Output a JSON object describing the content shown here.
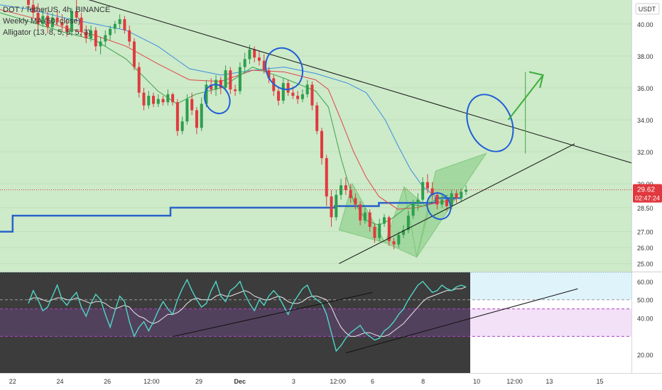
{
  "header": {
    "symbol_line": "DOT / TetherUS, 4h, BINANCE",
    "indicator_1": "Weekly MA (50, close)",
    "indicator_2": "Alligator (13, 8, 5, 8, 5, 3)"
  },
  "price_axis": {
    "currency": "USDT",
    "ticks": [
      "40.00",
      "38.00",
      "36.00",
      "34.00",
      "32.00",
      "30.00",
      "28.50",
      "27.00",
      "26.00",
      "25.00"
    ],
    "tick_values": [
      40,
      38,
      36,
      34,
      32,
      30,
      28.5,
      27,
      26,
      25
    ],
    "last_price": "29.62",
    "countdown": "02:47:24"
  },
  "osc_axis": {
    "ticks": [
      "60.00",
      "50.00",
      "40.00",
      "20.00"
    ],
    "tick_values": [
      60,
      50,
      40,
      20
    ]
  },
  "time_axis": {
    "labels": [
      "22",
      "24",
      "26",
      "12:00",
      "29",
      "Dec",
      "3",
      "12:00",
      "6",
      "8",
      "10",
      "12:00",
      "13",
      "15"
    ],
    "positions": [
      0.02,
      0.095,
      0.17,
      0.24,
      0.315,
      0.38,
      0.465,
      0.535,
      0.59,
      0.67,
      0.755,
      0.815,
      0.87,
      0.95
    ]
  },
  "colors": {
    "chart_bg": "#cdeac9",
    "osc_bg": "#3c3c3c",
    "bull": "#2e9e4e",
    "bear": "#e03a3e",
    "weekly_ma": "#2962c9",
    "jaw": "#3b8fe0",
    "teeth": "#e2474b",
    "lips": "#3fa34d",
    "rsi": "#4fd6c8",
    "rsi_ma": "#e8e8e8",
    "trend": "#111111",
    "ellipse": "#1f5ed6",
    "pattern": "#82c97d",
    "arrow": "#3cae3c",
    "price_tag": "#e0383e"
  },
  "chart_data": [
    {
      "type": "candlestick",
      "title": "DOT / TetherUS, 4h, BINANCE",
      "ylim": [
        24.5,
        41.5
      ],
      "candles": [
        [
          41.5,
          42.2,
          40.9,
          41.2
        ],
        [
          41.2,
          41.6,
          40.4,
          40.7
        ],
        [
          40.7,
          41.3,
          39.6,
          40.0
        ],
        [
          40.0,
          40.9,
          39.8,
          40.5
        ],
        [
          40.5,
          40.8,
          39.4,
          39.8
        ],
        [
          39.8,
          40.7,
          39.6,
          40.4
        ],
        [
          40.4,
          40.9,
          39.9,
          40.1
        ],
        [
          40.1,
          40.6,
          39.5,
          39.9
        ],
        [
          39.9,
          40.3,
          39.2,
          39.5
        ],
        [
          39.5,
          41.0,
          39.3,
          40.8
        ],
        [
          40.8,
          41.5,
          40.2,
          40.4
        ],
        [
          40.4,
          40.7,
          39.2,
          39.5
        ],
        [
          39.5,
          39.9,
          38.8,
          39.1
        ],
        [
          39.1,
          39.9,
          38.9,
          39.6
        ],
        [
          39.6,
          39.8,
          38.3,
          38.6
        ],
        [
          38.6,
          39.2,
          38.1,
          38.9
        ],
        [
          38.9,
          39.6,
          38.6,
          39.3
        ],
        [
          39.3,
          39.9,
          39.0,
          39.7
        ],
        [
          39.7,
          40.2,
          39.4,
          40.0
        ],
        [
          40.0,
          40.6,
          39.7,
          40.3
        ],
        [
          40.3,
          40.5,
          39.4,
          39.6
        ],
        [
          39.6,
          39.9,
          38.6,
          38.9
        ],
        [
          38.9,
          39.1,
          37.1,
          37.3
        ],
        [
          37.3,
          37.6,
          35.4,
          35.7
        ],
        [
          35.7,
          36.0,
          34.6,
          34.9
        ],
        [
          34.9,
          35.8,
          34.7,
          35.5
        ],
        [
          35.5,
          35.7,
          34.8,
          35.0
        ],
        [
          35.0,
          35.6,
          34.8,
          35.3
        ],
        [
          35.3,
          35.5,
          34.9,
          35.1
        ],
        [
          35.1,
          35.9,
          34.9,
          35.6
        ],
        [
          35.6,
          35.7,
          34.9,
          35.1
        ],
        [
          35.1,
          35.3,
          33.0,
          33.3
        ],
        [
          33.3,
          34.2,
          33.1,
          33.9
        ],
        [
          33.9,
          35.6,
          33.7,
          35.3
        ],
        [
          35.3,
          35.7,
          34.3,
          34.6
        ],
        [
          34.6,
          34.8,
          33.1,
          33.5
        ],
        [
          33.5,
          35.4,
          33.3,
          35.0
        ],
        [
          35.0,
          36.5,
          34.8,
          36.2
        ],
        [
          36.2,
          36.6,
          35.6,
          35.9
        ],
        [
          35.9,
          36.8,
          35.5,
          36.5
        ],
        [
          36.5,
          36.7,
          35.6,
          36.0
        ],
        [
          36.0,
          37.4,
          35.8,
          37.1
        ],
        [
          37.1,
          37.3,
          35.6,
          35.9
        ],
        [
          35.9,
          36.2,
          35.5,
          35.8
        ],
        [
          35.8,
          37.6,
          35.6,
          37.3
        ],
        [
          37.3,
          38.2,
          36.9,
          37.8
        ],
        [
          37.8,
          38.7,
          37.5,
          38.4
        ],
        [
          38.4,
          38.6,
          37.6,
          37.9
        ],
        [
          37.9,
          38.3,
          37.4,
          37.7
        ],
        [
          37.7,
          38.1,
          36.9,
          37.1
        ],
        [
          37.1,
          37.3,
          36.3,
          36.6
        ],
        [
          36.6,
          36.8,
          35.5,
          35.8
        ],
        [
          35.8,
          36.0,
          34.9,
          35.2
        ],
        [
          35.2,
          36.6,
          35.0,
          36.3
        ],
        [
          36.3,
          36.5,
          35.5,
          35.7
        ],
        [
          35.7,
          36.1,
          35.3,
          35.5
        ],
        [
          35.5,
          35.8,
          35.0,
          35.3
        ],
        [
          35.3,
          35.9,
          35.1,
          35.6
        ],
        [
          35.6,
          36.5,
          35.4,
          36.2
        ],
        [
          36.2,
          36.4,
          34.6,
          34.9
        ],
        [
          34.9,
          35.1,
          33.1,
          33.3
        ],
        [
          33.3,
          33.5,
          31.2,
          31.6
        ],
        [
          31.6,
          31.8,
          28.6,
          29.2
        ],
        [
          29.2,
          29.6,
          27.3,
          27.9
        ],
        [
          27.9,
          29.6,
          27.7,
          29.3
        ],
        [
          29.3,
          30.3,
          29.0,
          29.9
        ],
        [
          29.9,
          30.4,
          29.3,
          29.6
        ],
        [
          29.6,
          30.0,
          28.8,
          29.1
        ],
        [
          29.1,
          29.4,
          28.4,
          28.7
        ],
        [
          28.7,
          28.9,
          27.4,
          27.7
        ],
        [
          27.7,
          28.5,
          27.5,
          28.2
        ],
        [
          28.2,
          28.4,
          27.0,
          27.3
        ],
        [
          27.3,
          27.5,
          26.3,
          26.6
        ],
        [
          26.6,
          27.8,
          26.4,
          27.5
        ],
        [
          27.5,
          28.1,
          27.3,
          27.9
        ],
        [
          27.9,
          28.0,
          26.1,
          26.4
        ],
        [
          26.4,
          26.6,
          25.9,
          26.2
        ],
        [
          26.2,
          27.0,
          26.0,
          26.8
        ],
        [
          26.8,
          27.4,
          26.6,
          27.1
        ],
        [
          27.1,
          28.3,
          26.9,
          28.0
        ],
        [
          28.0,
          29.0,
          27.8,
          28.8
        ],
        [
          28.8,
          29.4,
          28.3,
          29.0
        ],
        [
          29.0,
          30.4,
          28.8,
          30.1
        ],
        [
          30.1,
          30.6,
          29.4,
          29.7
        ],
        [
          29.7,
          30.1,
          29.0,
          29.3
        ],
        [
          29.3,
          29.5,
          28.4,
          28.7
        ],
        [
          28.7,
          29.3,
          28.5,
          29.0
        ],
        [
          29.0,
          29.2,
          28.3,
          28.6
        ],
        [
          28.6,
          29.6,
          28.4,
          29.4
        ],
        [
          29.4,
          29.6,
          28.8,
          29.1
        ],
        [
          29.1,
          29.7,
          28.9,
          29.5
        ],
        [
          29.5,
          29.9,
          29.3,
          29.62
        ]
      ],
      "weekly_ma": [
        [
          0,
          27.0
        ],
        [
          0.02,
          27.0
        ],
        [
          0.02,
          28.0
        ],
        [
          0.27,
          28.0
        ],
        [
          0.27,
          28.5
        ],
        [
          0.53,
          28.5
        ],
        [
          0.53,
          28.6
        ],
        [
          0.6,
          28.6
        ],
        [
          0.6,
          28.8
        ],
        [
          0.69,
          28.8
        ],
        [
          0.69,
          29.1
        ],
        [
          0.73,
          29.1
        ]
      ],
      "alligator_jaw": [
        [
          0,
          41.2
        ],
        [
          0.05,
          40.9
        ],
        [
          0.1,
          40.4
        ],
        [
          0.15,
          40.0
        ],
        [
          0.2,
          39.6
        ],
        [
          0.25,
          38.6
        ],
        [
          0.3,
          37.2
        ],
        [
          0.35,
          36.8
        ],
        [
          0.4,
          37.1
        ],
        [
          0.45,
          37.3
        ],
        [
          0.5,
          36.9
        ],
        [
          0.55,
          36.3
        ],
        [
          0.58,
          35.7
        ],
        [
          0.61,
          34.0
        ],
        [
          0.63,
          32.4
        ],
        [
          0.65,
          30.9
        ],
        [
          0.67,
          29.8
        ],
        [
          0.69,
          29.2
        ],
        [
          0.71,
          29.0
        ],
        [
          0.73,
          29.1
        ]
      ],
      "alligator_teeth": [
        [
          0,
          40.9
        ],
        [
          0.05,
          40.4
        ],
        [
          0.1,
          39.8
        ],
        [
          0.15,
          39.3
        ],
        [
          0.2,
          38.6
        ],
        [
          0.25,
          37.5
        ],
        [
          0.3,
          36.5
        ],
        [
          0.35,
          36.4
        ],
        [
          0.4,
          37.1
        ],
        [
          0.45,
          37.0
        ],
        [
          0.5,
          36.5
        ],
        [
          0.52,
          35.9
        ],
        [
          0.54,
          34.0
        ],
        [
          0.56,
          32.0
        ],
        [
          0.58,
          30.4
        ],
        [
          0.6,
          29.2
        ],
        [
          0.63,
          28.4
        ],
        [
          0.66,
          28.5
        ],
        [
          0.69,
          28.8
        ],
        [
          0.72,
          29.0
        ]
      ],
      "alligator_lips": [
        [
          0,
          40.7
        ],
        [
          0.05,
          40.1
        ],
        [
          0.1,
          39.5
        ],
        [
          0.15,
          39.0
        ],
        [
          0.2,
          37.8
        ],
        [
          0.25,
          35.8
        ],
        [
          0.28,
          35.0
        ],
        [
          0.31,
          35.6
        ],
        [
          0.35,
          36.0
        ],
        [
          0.4,
          37.3
        ],
        [
          0.45,
          36.6
        ],
        [
          0.5,
          35.8
        ],
        [
          0.52,
          34.8
        ],
        [
          0.54,
          31.6
        ],
        [
          0.56,
          28.9
        ],
        [
          0.58,
          27.7
        ],
        [
          0.6,
          27.4
        ],
        [
          0.62,
          27.8
        ],
        [
          0.65,
          28.7
        ],
        [
          0.67,
          28.6
        ],
        [
          0.69,
          29.0
        ],
        [
          0.71,
          29.3
        ]
      ]
    },
    {
      "type": "line",
      "ylim": [
        10,
        65
      ],
      "levels": [
        65,
        50,
        45,
        30
      ],
      "series": [
        {
          "values": [
            48,
            55,
            50,
            44,
            46,
            52,
            58,
            50,
            47,
            51,
            54,
            46,
            41,
            48,
            53,
            50,
            42,
            35,
            44,
            52,
            49,
            38,
            30,
            35,
            38,
            33,
            38,
            44,
            49,
            45,
            42,
            50,
            56,
            61,
            55,
            50,
            46,
            48,
            55,
            60,
            52,
            49,
            55,
            57,
            60,
            53,
            48,
            44,
            50,
            47,
            52,
            55,
            52,
            47,
            42,
            48,
            52,
            56,
            58,
            52,
            50,
            48,
            42,
            32,
            22,
            25,
            29,
            32,
            34,
            36,
            32,
            30,
            28,
            29,
            33,
            35,
            38,
            42,
            45,
            50,
            54,
            58,
            60,
            57,
            54,
            55,
            58,
            56,
            55,
            57,
            58,
            57
          ]
        },
        {
          "values": [
            50,
            51,
            51,
            50,
            49,
            50,
            51,
            51,
            50,
            50,
            51,
            50,
            49,
            48,
            49,
            49,
            48,
            46,
            45,
            46,
            47,
            46,
            43,
            41,
            40,
            38,
            37,
            38,
            40,
            42,
            42,
            43,
            45,
            48,
            50,
            51,
            50,
            50,
            50,
            52,
            53,
            52,
            52,
            53,
            54,
            55,
            54,
            52,
            51,
            50,
            50,
            51,
            52,
            51,
            49,
            48,
            48,
            49,
            51,
            52,
            52,
            51,
            50,
            46,
            40,
            35,
            32,
            30,
            30,
            31,
            32,
            32,
            31,
            30,
            30,
            31,
            33,
            35,
            37,
            40,
            43,
            46,
            49,
            51,
            52,
            53,
            54,
            55,
            55,
            56,
            56,
            57
          ]
        }
      ]
    }
  ]
}
